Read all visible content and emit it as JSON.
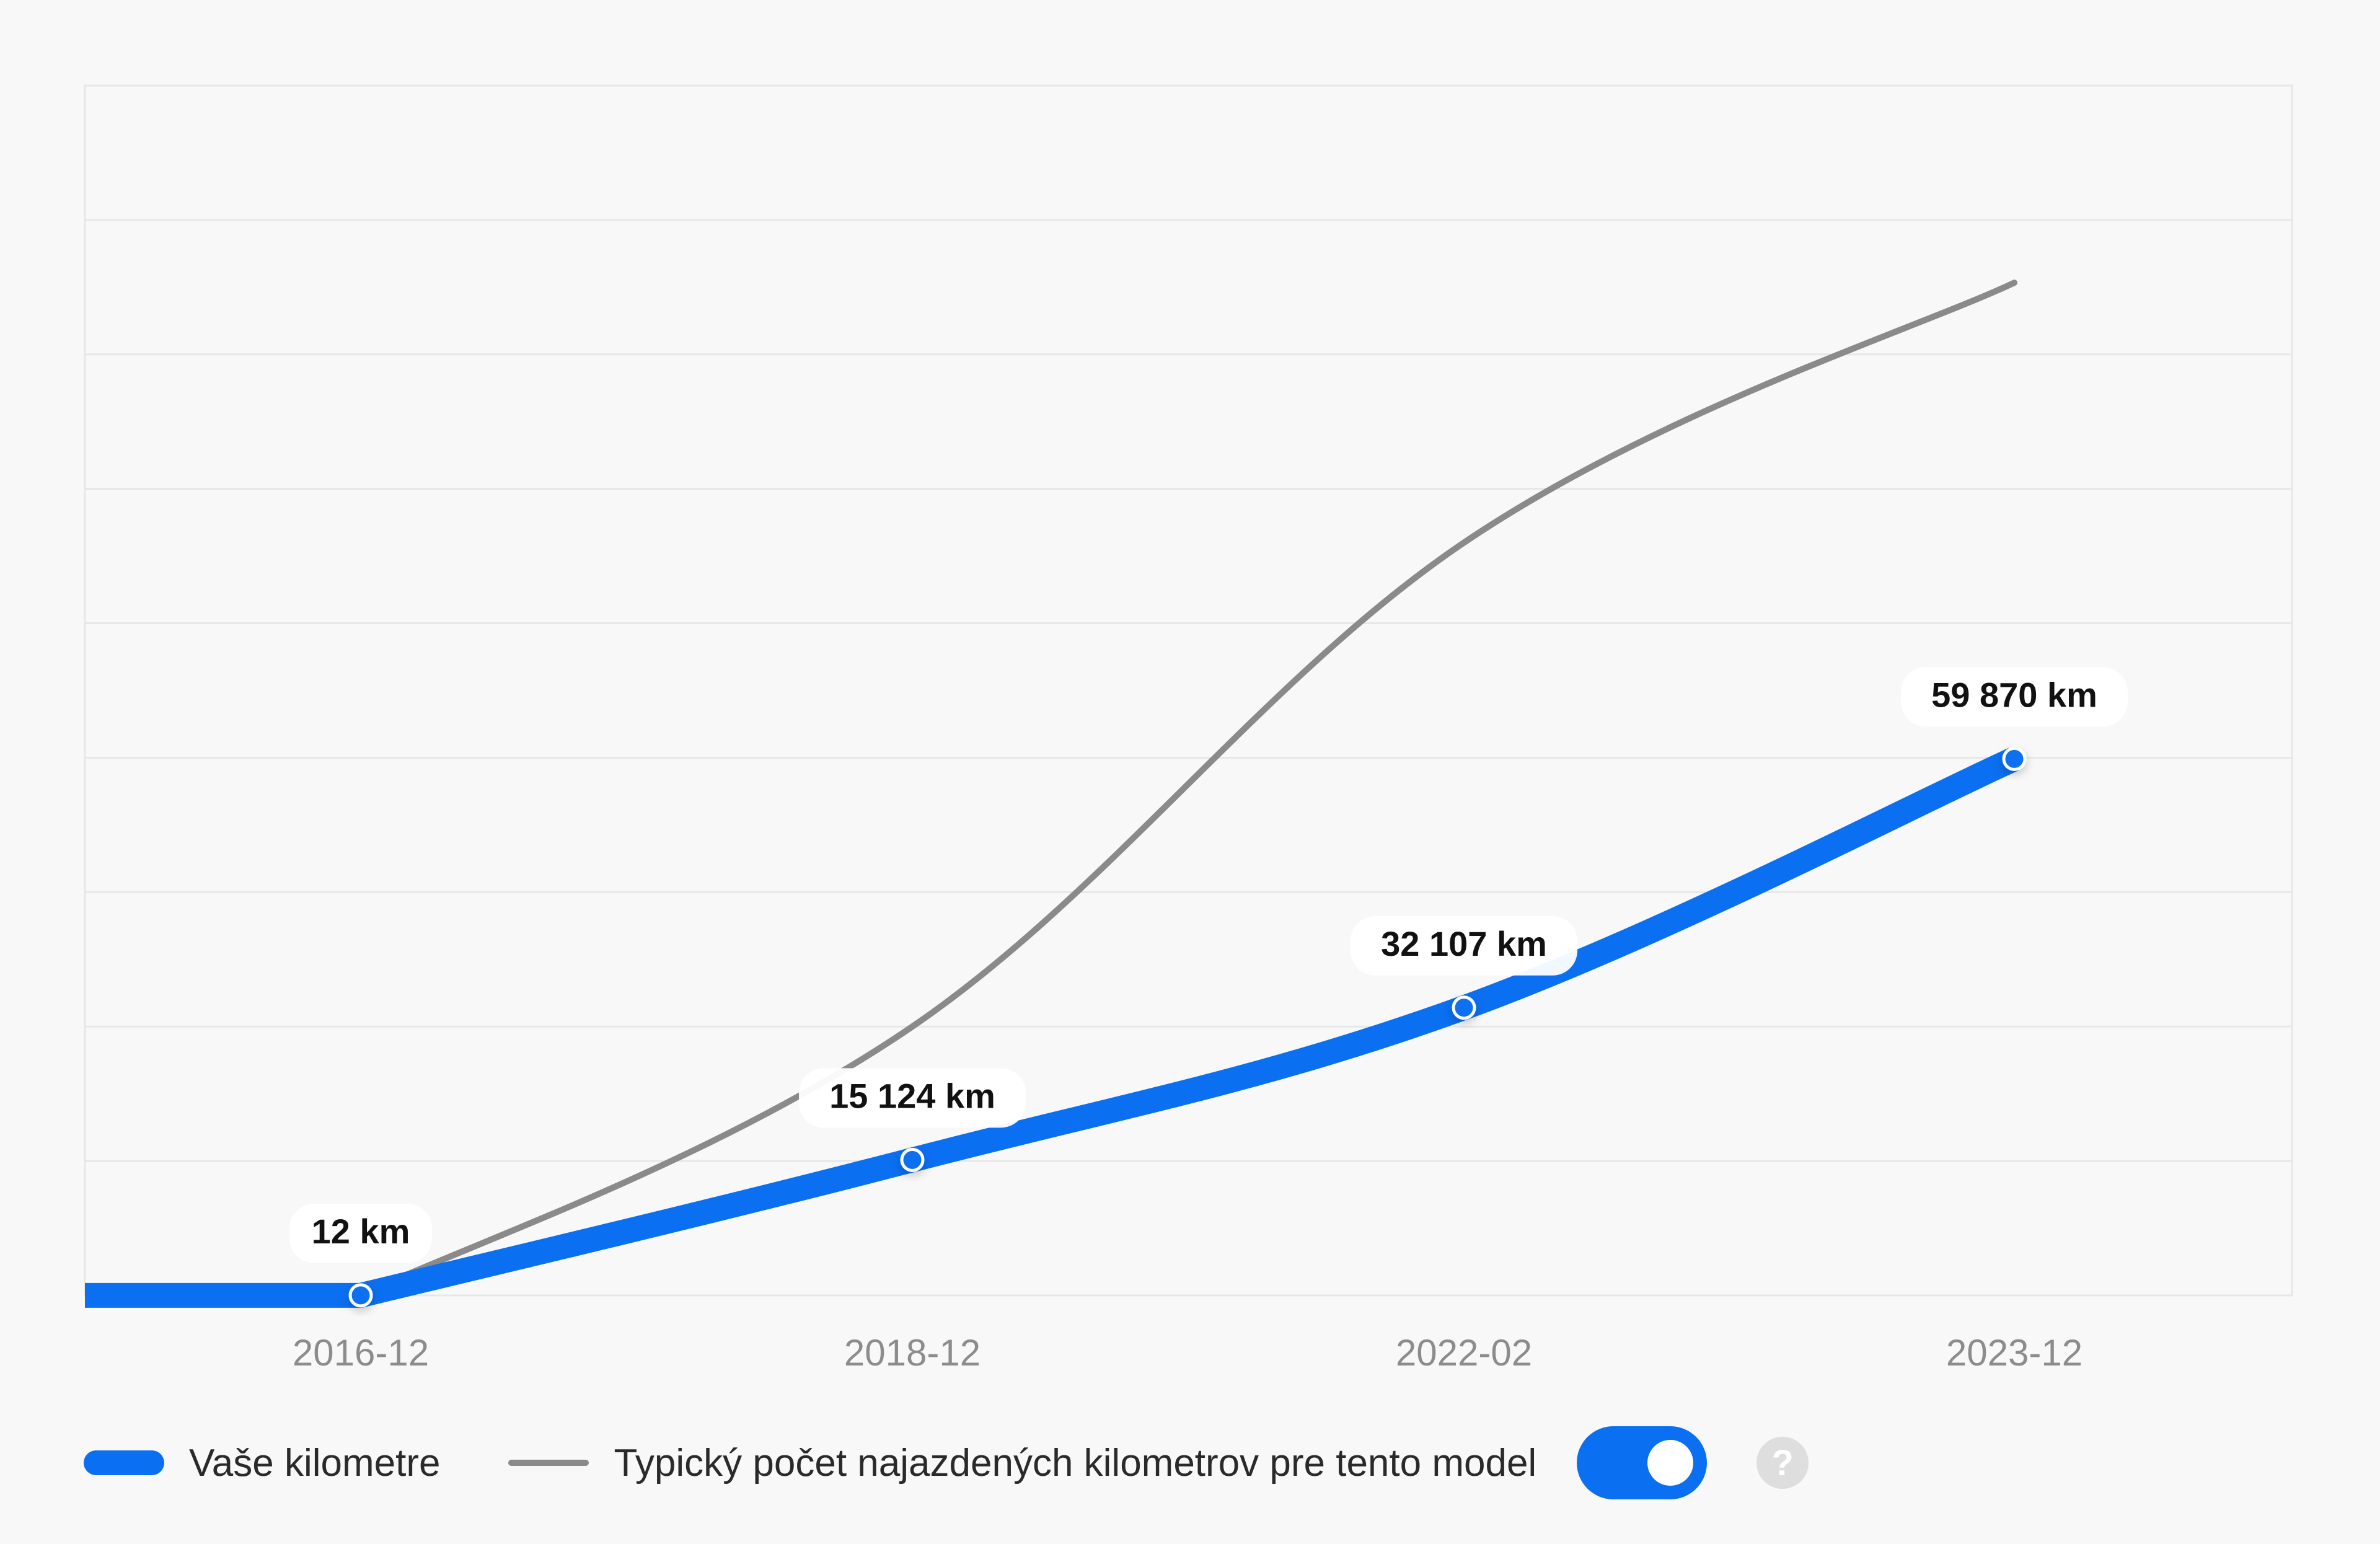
{
  "chart_data": {
    "type": "line",
    "categories": [
      "2016-12",
      "2018-12",
      "2022-02",
      "2023-12"
    ],
    "series": [
      {
        "name": "Vaše kilometre",
        "values": [
          12,
          15124,
          32107,
          59870
        ],
        "point_labels": [
          "12 km",
          "15 124 km",
          "32 107 km",
          "59 870 km"
        ],
        "color": "#0a6ff0"
      },
      {
        "name": "Typický počet najazdených kilometrov pre tento model",
        "values": [
          0,
          30000,
          84000,
          113000
        ],
        "color": "#8a8a8a"
      }
    ],
    "ylim": [
      0,
      135000
    ],
    "grid": true,
    "legend": "bottom-left",
    "xlabel": "",
    "ylabel": ""
  },
  "legend": {
    "own_label": "Vaše kilometre",
    "typical_label": "Typický počet najazdených kilometrov pre tento model"
  },
  "controls": {
    "typical_toggle_on": true,
    "help_icon_glyph": "?"
  },
  "colors": {
    "accent": "#0a6ff0",
    "typical": "#8a8a8a",
    "grid": "#e7e7e7",
    "tick_text": "#8c8c8c"
  }
}
